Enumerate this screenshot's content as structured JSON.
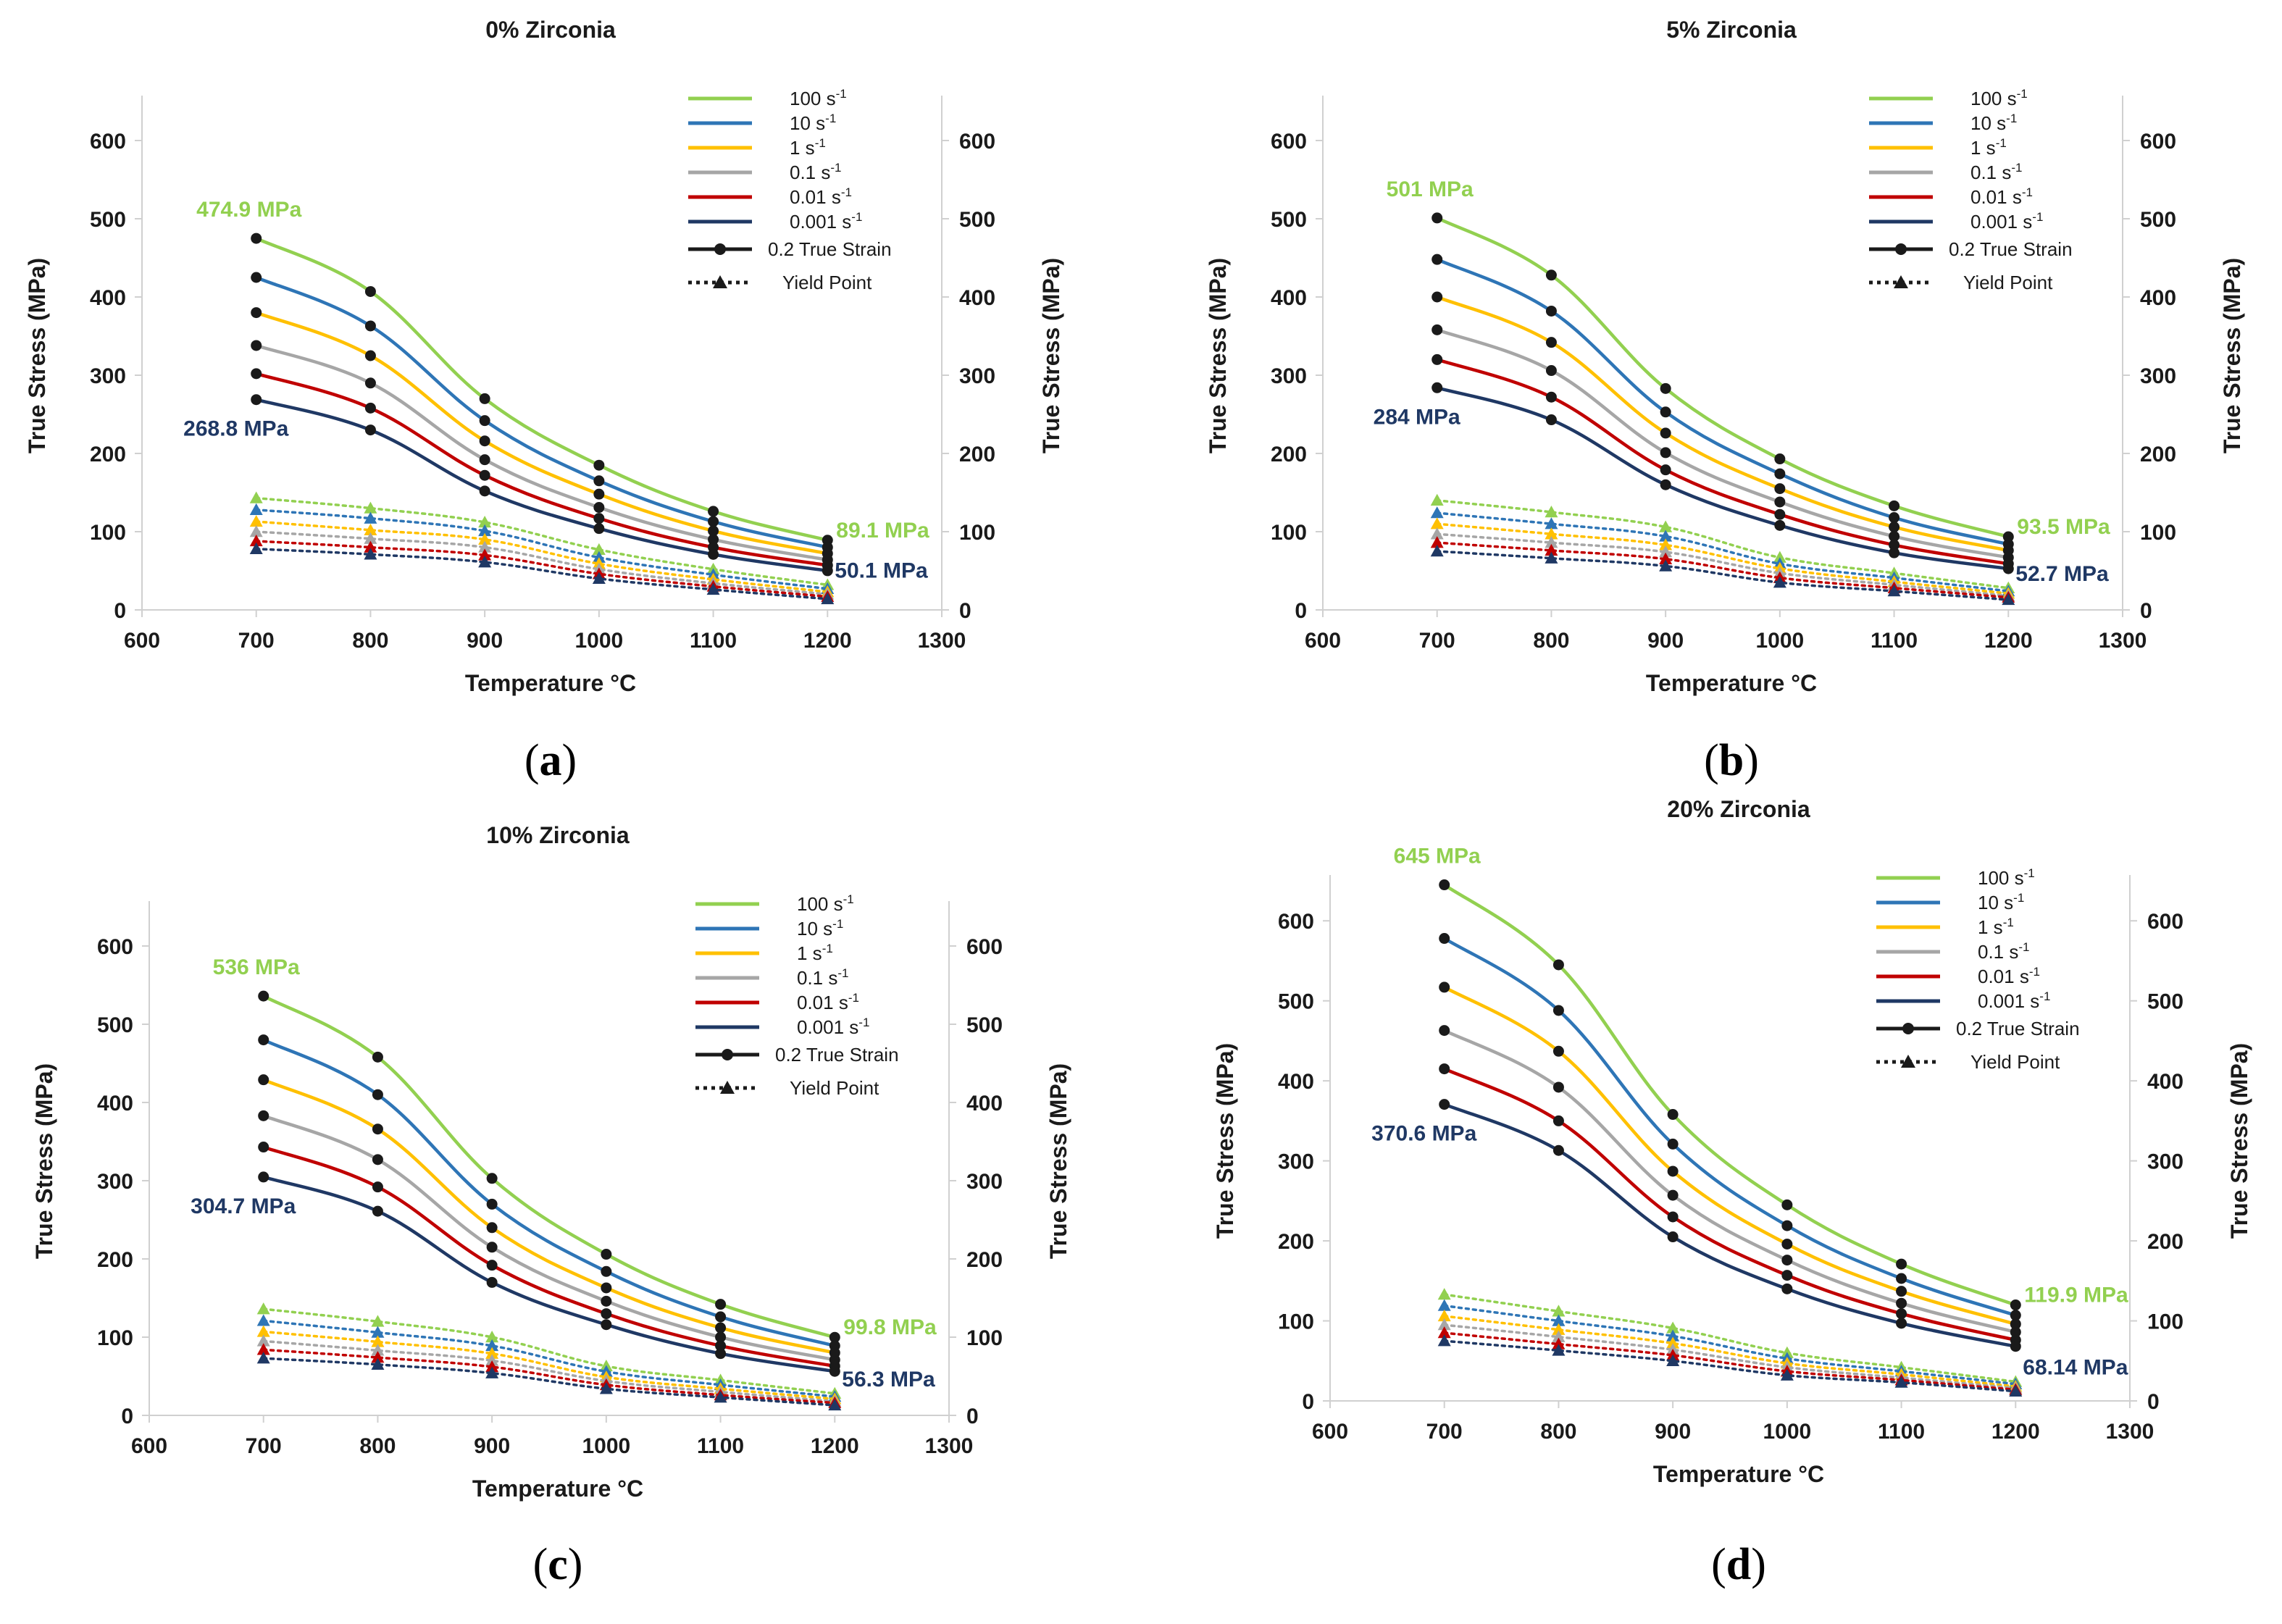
{
  "legend": {
    "rate_labels": [
      {
        "num": "100 s",
        "sup": "-1"
      },
      {
        "num": "10 s",
        "sup": "-1"
      },
      {
        "num": "1 s",
        "sup": "-1"
      },
      {
        "num": "0.1 s",
        "sup": "-1"
      },
      {
        "num": "0.01 s",
        "sup": "-1"
      },
      {
        "num": "0.001 s",
        "sup": "-1"
      }
    ],
    "strain_label": "0.2 True Strain",
    "yield_label": "Yield Point"
  },
  "colors": {
    "series": [
      "#92d050",
      "#2e75b6",
      "#ffc000",
      "#a6a6a6",
      "#c00000",
      "#1f3864"
    ],
    "high_annotation": "#92d050",
    "low_annotation": "#1f3864",
    "text": "#1a1a1a",
    "axis": "#d0d0d0"
  },
  "chart_data": [
    {
      "type": "line",
      "panel_label": "(a)",
      "title": "0% Zirconia",
      "xlabel": "Temperature °C",
      "ylabel": "True Stress (MPa)",
      "ylabel_right": "True Stress (MPa)",
      "xlim": [
        600,
        1300
      ],
      "ylim": [
        0,
        650
      ],
      "xticks": [
        600,
        700,
        800,
        900,
        1000,
        1100,
        1200,
        1300
      ],
      "yticks": [
        0,
        100,
        200,
        300,
        400,
        500,
        600
      ],
      "x": [
        700,
        800,
        900,
        1000,
        1100,
        1200
      ],
      "strain_series": [
        {
          "name": "100 s-1",
          "values": [
            474.9,
            407,
            270,
            185,
            126,
            89.1
          ]
        },
        {
          "name": "10 s-1",
          "values": [
            425,
            363,
            242,
            165,
            113,
            80
          ]
        },
        {
          "name": "1 s-1",
          "values": [
            380,
            325,
            216,
            148,
            101,
            72
          ]
        },
        {
          "name": "0.1 s-1",
          "values": [
            338,
            290,
            192,
            131,
            90,
            64
          ]
        },
        {
          "name": "0.01 s-1",
          "values": [
            302,
            258,
            172,
            117,
            80,
            57
          ]
        },
        {
          "name": "0.001 s-1",
          "values": [
            268.8,
            230,
            152,
            104,
            71,
            50.1
          ]
        }
      ],
      "yield_series": [
        {
          "name": "100 s-1",
          "values": [
            143,
            130,
            112,
            77,
            52,
            32
          ]
        },
        {
          "name": "10 s-1",
          "values": [
            128,
            117,
            101,
            67,
            45,
            27
          ]
        },
        {
          "name": "1 s-1",
          "values": [
            113,
            102,
            90,
            59,
            39,
            23
          ]
        },
        {
          "name": "0.1 s-1",
          "values": [
            100,
            91,
            80,
            52,
            34,
            20
          ]
        },
        {
          "name": "0.01 s-1",
          "values": [
            88,
            80,
            70,
            46,
            30,
            17
          ]
        },
        {
          "name": "0.001 s-1",
          "values": [
            78,
            71,
            61,
            40,
            26,
            14
          ]
        }
      ],
      "annotations": {
        "max": "474.9 MPa",
        "min_low_temp": "268.8 MPa",
        "max_high_temp": "89.1 MPa",
        "min_high_temp": "50.1 MPa"
      }
    },
    {
      "type": "line",
      "panel_label": "(b)",
      "title": "5% Zirconia",
      "xlabel": "Temperature °C",
      "ylabel": "True Stress (MPa)",
      "ylabel_right": "True Stress (MPa)",
      "xlim": [
        600,
        1300
      ],
      "ylim": [
        0,
        650
      ],
      "xticks": [
        600,
        700,
        800,
        900,
        1000,
        1100,
        1200,
        1300
      ],
      "yticks": [
        0,
        100,
        200,
        300,
        400,
        500,
        600
      ],
      "x": [
        700,
        800,
        900,
        1000,
        1100,
        1200
      ],
      "strain_series": [
        {
          "name": "100 s-1",
          "values": [
            501,
            428,
            283,
            193,
            133,
            93.5
          ]
        },
        {
          "name": "10 s-1",
          "values": [
            448,
            382,
            253,
            174,
            118,
            84
          ]
        },
        {
          "name": "1 s-1",
          "values": [
            400,
            342,
            226,
            155,
            106,
            76
          ]
        },
        {
          "name": "0.1 s-1",
          "values": [
            358,
            306,
            201,
            138,
            94,
            67
          ]
        },
        {
          "name": "0.01 s-1",
          "values": [
            320,
            272,
            179,
            122,
            83,
            59
          ]
        },
        {
          "name": "0.001 s-1",
          "values": [
            284,
            243,
            160,
            108,
            73,
            52.7
          ]
        }
      ],
      "yield_series": [
        {
          "name": "100 s-1",
          "values": [
            140,
            125,
            106,
            67,
            47,
            28
          ]
        },
        {
          "name": "10 s-1",
          "values": [
            124,
            110,
            94,
            59,
            41,
            24
          ]
        },
        {
          "name": "1 s-1",
          "values": [
            110,
            97,
            83,
            53,
            36,
            21
          ]
        },
        {
          "name": "0.1 s-1",
          "values": [
            97,
            86,
            74,
            47,
            32,
            18
          ]
        },
        {
          "name": "0.01 s-1",
          "values": [
            86,
            76,
            65,
            41,
            28,
            16
          ]
        },
        {
          "name": "0.001 s-1",
          "values": [
            75,
            66,
            56,
            35,
            24,
            13
          ]
        }
      ],
      "annotations": {
        "max": "501 MPa",
        "min_low_temp": "284 MPa",
        "max_high_temp": "93.5 MPa",
        "min_high_temp": "52.7 MPa"
      }
    },
    {
      "type": "line",
      "panel_label": "(c)",
      "title": "10% Zirconia",
      "xlabel": "Temperature °C",
      "ylabel": "True Stress (MPa)",
      "ylabel_right": "True Stress (MPa)",
      "xlim": [
        600,
        1300
      ],
      "ylim": [
        0,
        650
      ],
      "xticks": [
        600,
        700,
        800,
        900,
        1000,
        1100,
        1200,
        1300
      ],
      "yticks": [
        0,
        100,
        200,
        300,
        400,
        500,
        600
      ],
      "x": [
        700,
        800,
        900,
        1000,
        1100,
        1200
      ],
      "strain_series": [
        {
          "name": "100 s-1",
          "values": [
            536,
            458,
            303,
            206,
            142,
            99.8
          ]
        },
        {
          "name": "10 s-1",
          "values": [
            480,
            410,
            270,
            184,
            126,
            89
          ]
        },
        {
          "name": "1 s-1",
          "values": [
            429,
            366,
            240,
            163,
            112,
            80
          ]
        },
        {
          "name": "0.1 s-1",
          "values": [
            383,
            327,
            215,
            146,
            100,
            71
          ]
        },
        {
          "name": "0.01 s-1",
          "values": [
            343,
            292,
            192,
            130,
            89,
            63
          ]
        },
        {
          "name": "0.001 s-1",
          "values": [
            304.7,
            261,
            170,
            116,
            79,
            56.3
          ]
        }
      ],
      "yield_series": [
        {
          "name": "100 s-1",
          "values": [
            136,
            120,
            100,
            63,
            45,
            28
          ]
        },
        {
          "name": "10 s-1",
          "values": [
            121,
            106,
            89,
            56,
            39,
            24
          ]
        },
        {
          "name": "1 s-1",
          "values": [
            107,
            94,
            79,
            49,
            34,
            21
          ]
        },
        {
          "name": "0.1 s-1",
          "values": [
            95,
            83,
            70,
            44,
            30,
            18
          ]
        },
        {
          "name": "0.01 s-1",
          "values": [
            84,
            74,
            62,
            39,
            26,
            16
          ]
        },
        {
          "name": "0.001 s-1",
          "values": [
            73,
            65,
            54,
            34,
            23,
            13
          ]
        }
      ],
      "annotations": {
        "max": "536 MPa",
        "min_low_temp": "304.7 MPa",
        "max_high_temp": "99.8 MPa",
        "min_high_temp": "56.3 MPa"
      }
    },
    {
      "type": "line",
      "panel_label": "(d)",
      "title": "20% Zirconia",
      "xlabel": "Temperature °C",
      "ylabel": "True Stress (MPa)",
      "ylabel_right": "True Stress (MPa)",
      "xlim": [
        600,
        1300
      ],
      "ylim": [
        0,
        650
      ],
      "xticks": [
        600,
        700,
        800,
        900,
        1000,
        1100,
        1200,
        1300
      ],
      "yticks": [
        0,
        100,
        200,
        300,
        400,
        500,
        600
      ],
      "x": [
        700,
        800,
        900,
        1000,
        1100,
        1200
      ],
      "strain_series": [
        {
          "name": "100 s-1",
          "values": [
            645,
            545,
            358,
            245,
            171,
            119.9
          ]
        },
        {
          "name": "10 s-1",
          "values": [
            578,
            488,
            321,
            219,
            153,
            107
          ]
        },
        {
          "name": "1 s-1",
          "values": [
            517,
            437,
            287,
            196,
            137,
            96
          ]
        },
        {
          "name": "0.1 s-1",
          "values": [
            463,
            392,
            257,
            176,
            122,
            86
          ]
        },
        {
          "name": "0.01 s-1",
          "values": [
            415,
            350,
            230,
            157,
            109,
            76
          ]
        },
        {
          "name": "0.001 s-1",
          "values": [
            370.6,
            313,
            205,
            140,
            97,
            68.14
          ]
        }
      ],
      "yield_series": [
        {
          "name": "100 s-1",
          "values": [
            133,
            112,
            91,
            60,
            42,
            24
          ]
        },
        {
          "name": "10 s-1",
          "values": [
            119,
            100,
            81,
            53,
            37,
            21
          ]
        },
        {
          "name": "1 s-1",
          "values": [
            106,
            89,
            72,
            47,
            33,
            18
          ]
        },
        {
          "name": "0.1 s-1",
          "values": [
            95,
            80,
            64,
            42,
            29,
            16
          ]
        },
        {
          "name": "0.01 s-1",
          "values": [
            85,
            71,
            57,
            37,
            26,
            14
          ]
        },
        {
          "name": "0.001 s-1",
          "values": [
            75,
            63,
            50,
            32,
            23,
            12
          ]
        }
      ],
      "annotations": {
        "max": "645 MPa",
        "min_low_temp": "370.6 MPa",
        "max_high_temp": "119.9 MPa",
        "min_high_temp": "68.14 MPa"
      }
    }
  ]
}
